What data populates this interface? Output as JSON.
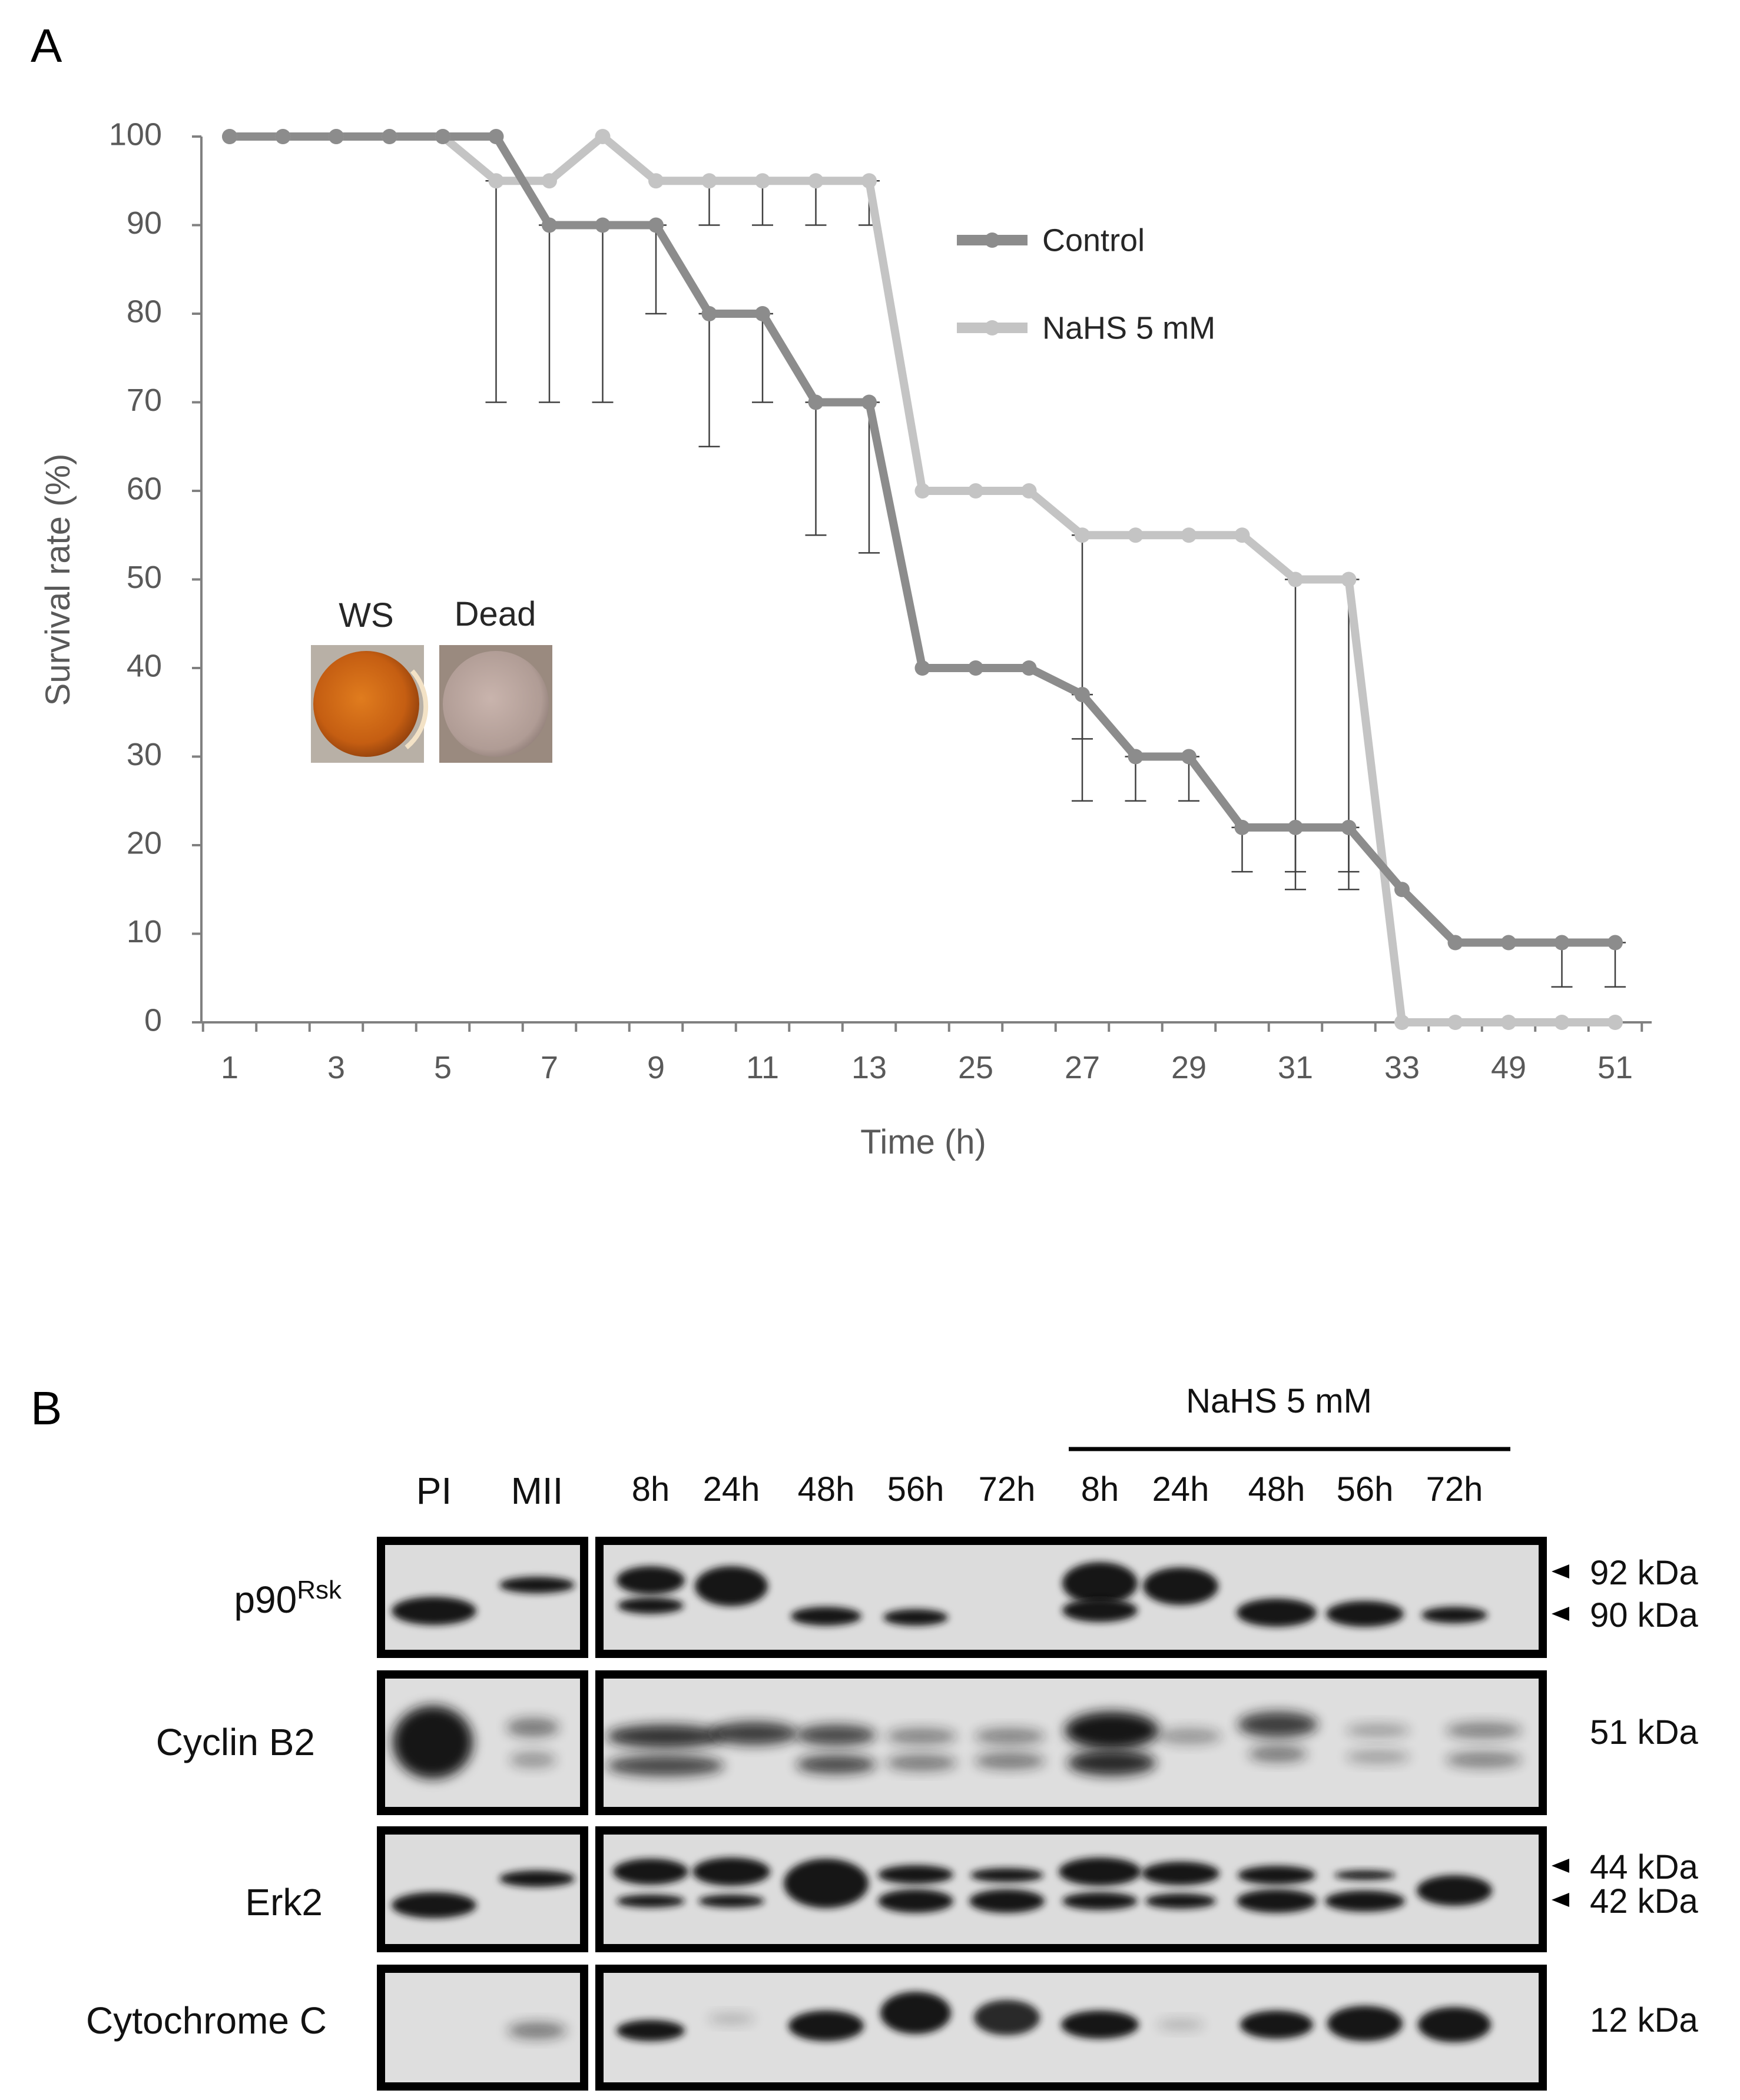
{
  "panel_a": {
    "letter": "A",
    "inset": {
      "labels": [
        "WS",
        "Dead"
      ]
    }
  },
  "panel_b": {
    "letter": "B",
    "treatment_label": "NaHS 5 mM",
    "lanes_left": [
      "PI",
      "MII"
    ],
    "lanes_right": [
      "8h",
      "24h",
      "48h",
      "56h",
      "72h",
      "8h",
      "24h",
      "48h",
      "56h",
      "72h"
    ],
    "rows": [
      {
        "label": "p90",
        "superscript": "Rsk",
        "markers": [
          "92 kDa",
          "90 kDa"
        ]
      },
      {
        "label": "Cyclin B2",
        "markers": [
          "51 kDa"
        ]
      },
      {
        "label": "Erk2",
        "markers": [
          "44 kDa",
          "42 kDa"
        ]
      },
      {
        "label": "Cytochrome C",
        "markers": [
          "12 kDa"
        ]
      }
    ]
  },
  "chart_data": {
    "type": "line",
    "title": "",
    "xlabel": "Time (h)",
    "ylabel": "Survival rate (%)",
    "ylim": [
      0,
      100
    ],
    "yticks": [
      0,
      10,
      20,
      30,
      40,
      50,
      60,
      70,
      80,
      90,
      100
    ],
    "categories": [
      "1",
      "2",
      "3",
      "4",
      "5",
      "6",
      "7",
      "8",
      "9",
      "10",
      "11",
      "12",
      "13",
      "14",
      "25",
      "26",
      "27",
      "28",
      "29",
      "30",
      "31",
      "32",
      "33",
      "34",
      "49",
      "50",
      "51"
    ],
    "xtick_labels": [
      "1",
      "3",
      "5",
      "7",
      "9",
      "11",
      "13",
      "25",
      "27",
      "29",
      "31",
      "33",
      "49",
      "51"
    ],
    "legend_position": "top-right",
    "series": [
      {
        "name": "Control",
        "color": "#8c8c8c",
        "values": [
          100,
          100,
          100,
          100,
          100,
          100,
          90,
          90,
          90,
          80,
          80,
          70,
          70,
          40,
          40,
          40,
          37,
          30,
          30,
          22,
          22,
          22,
          15,
          9,
          9,
          9,
          9
        ],
        "err_low": [
          null,
          null,
          null,
          null,
          null,
          null,
          70,
          70,
          80,
          65,
          70,
          55,
          53,
          null,
          null,
          null,
          25,
          25,
          25,
          17,
          15,
          15,
          null,
          null,
          null,
          4,
          4
        ]
      },
      {
        "name": "NaHS 5 mM",
        "color": "#c4c4c4",
        "values": [
          100,
          100,
          100,
          100,
          100,
          95,
          95,
          100,
          95,
          95,
          95,
          95,
          95,
          60,
          60,
          60,
          55,
          55,
          55,
          55,
          50,
          50,
          0,
          0,
          0,
          0,
          0
        ],
        "err_low": [
          null,
          null,
          null,
          null,
          null,
          70,
          null,
          null,
          null,
          90,
          90,
          90,
          90,
          null,
          null,
          null,
          32,
          null,
          null,
          null,
          17,
          17,
          null,
          null,
          null,
          null,
          null
        ]
      }
    ]
  },
  "colors": {
    "control": "#8c8c8c",
    "nahs": "#c4c4c4",
    "axis": "#808080"
  }
}
